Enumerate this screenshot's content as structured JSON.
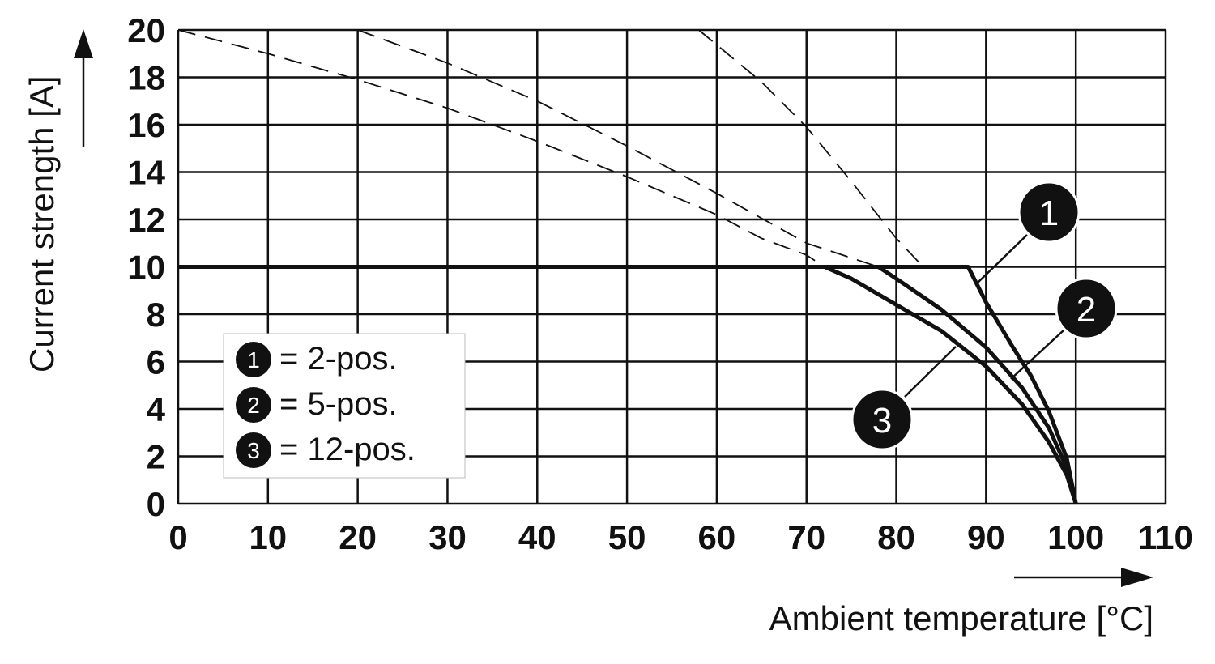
{
  "chart_data": {
    "type": "line",
    "xlabel": "Ambient temperature [°C]",
    "ylabel": "Current strength [A]",
    "xlim": [
      0,
      110
    ],
    "ylim": [
      0,
      20
    ],
    "x_ticks": [
      "0",
      "10",
      "20",
      "30",
      "40",
      "50",
      "60",
      "70",
      "80",
      "90",
      "100",
      "110"
    ],
    "y_ticks": [
      "0",
      "2",
      "4",
      "6",
      "8",
      "10",
      "12",
      "14",
      "16",
      "18",
      "20"
    ],
    "grid": true,
    "limit_line": {
      "y": 10
    },
    "series": [
      {
        "marker": "1",
        "legend": "= 2-pos.",
        "points": [
          [
            58,
            20
          ],
          [
            65,
            17.8
          ],
          [
            70,
            15.9
          ],
          [
            75,
            13.6
          ],
          [
            80,
            11.2
          ],
          [
            83,
            10.0
          ],
          [
            88,
            10.0
          ],
          [
            90,
            8.5
          ],
          [
            93,
            6.6
          ],
          [
            95,
            5.4
          ],
          [
            97,
            3.9
          ],
          [
            99,
            1.9
          ],
          [
            100,
            0
          ]
        ]
      },
      {
        "marker": "2",
        "legend": "= 5-pos.",
        "points": [
          [
            20,
            20
          ],
          [
            30,
            18.6
          ],
          [
            40,
            17.0
          ],
          [
            50,
            15.1
          ],
          [
            60,
            13.1
          ],
          [
            70,
            11.0
          ],
          [
            78,
            10.0
          ],
          [
            80,
            9.5
          ],
          [
            85,
            8.2
          ],
          [
            90,
            6.6
          ],
          [
            94,
            4.9
          ],
          [
            97,
            3.2
          ],
          [
            99,
            1.5
          ],
          [
            100,
            0
          ]
        ]
      },
      {
        "marker": "3",
        "legend": "= 12-pos.",
        "points": [
          [
            0,
            20
          ],
          [
            10,
            19.0
          ],
          [
            20,
            17.9
          ],
          [
            30,
            16.7
          ],
          [
            40,
            15.3
          ],
          [
            50,
            13.8
          ],
          [
            60,
            12.2
          ],
          [
            65,
            11.2
          ],
          [
            70,
            10.5
          ],
          [
            72,
            10.0
          ],
          [
            75,
            9.5
          ],
          [
            80,
            8.4
          ],
          [
            85,
            7.3
          ],
          [
            90,
            5.8
          ],
          [
            94,
            4.2
          ],
          [
            97,
            2.6
          ],
          [
            99,
            1.2
          ],
          [
            100,
            0
          ]
        ]
      }
    ]
  }
}
